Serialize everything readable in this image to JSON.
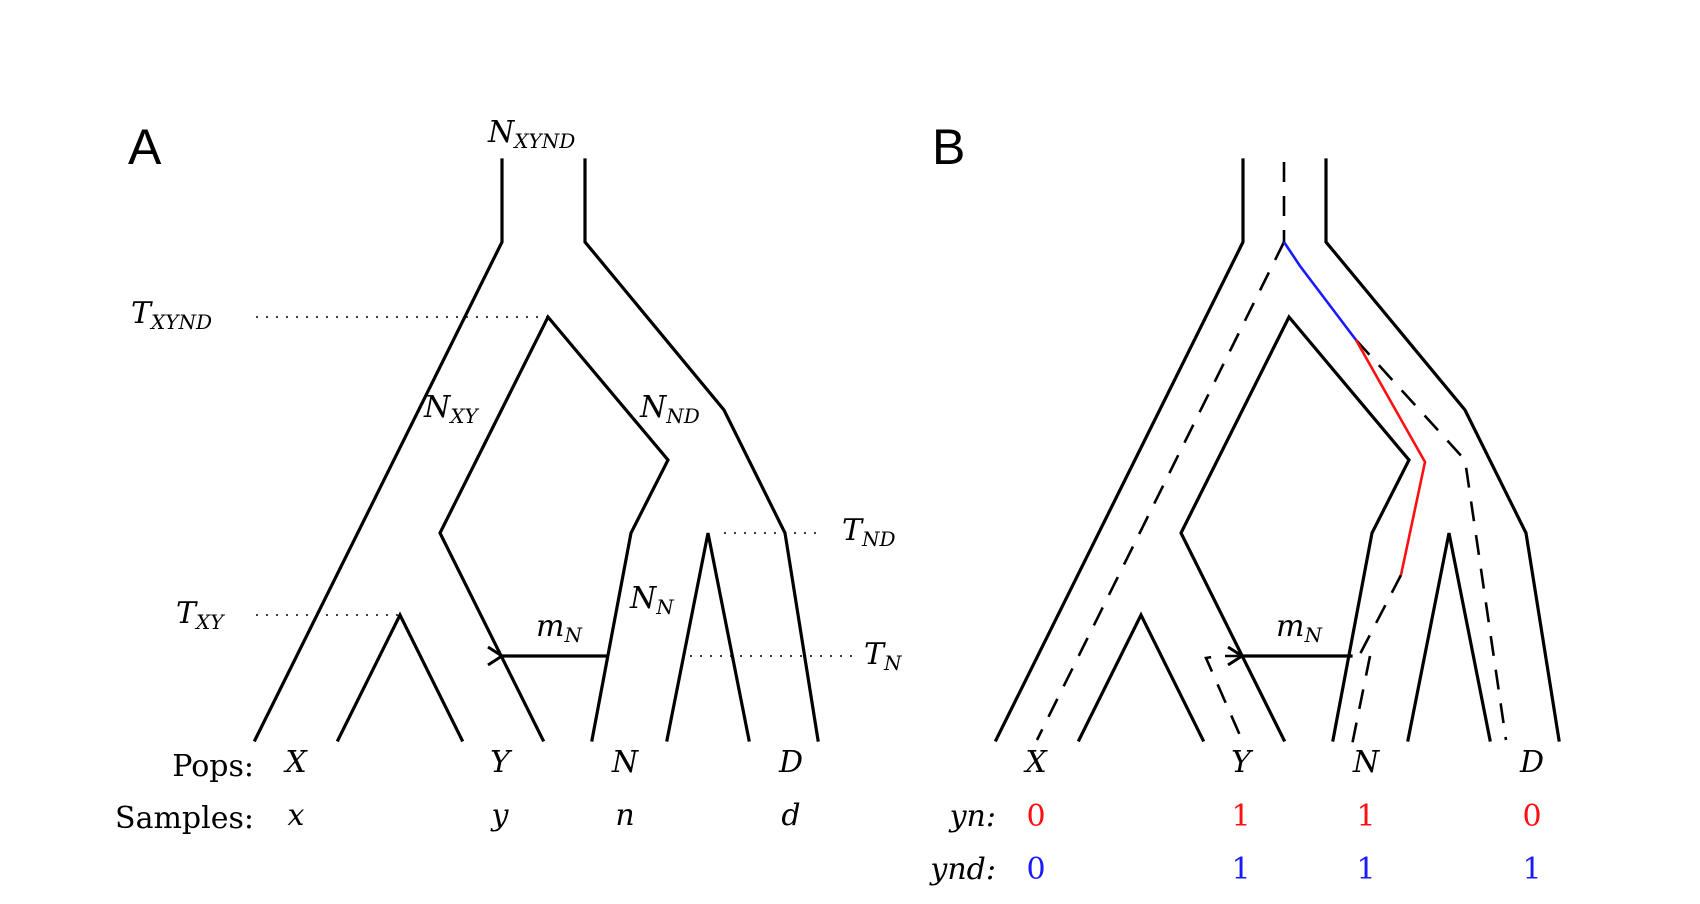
{
  "panels": {
    "a": {
      "letter": "A",
      "top_size_label": {
        "main": "N",
        "sub": "XYND"
      },
      "split_times": [
        {
          "main": "T",
          "sub": "XYND"
        },
        {
          "main": "T",
          "sub": "XY"
        },
        {
          "main": "T",
          "sub": "ND"
        },
        {
          "main": "T",
          "sub": "N"
        }
      ],
      "branch_sizes": [
        {
          "main": "N",
          "sub": "XY"
        },
        {
          "main": "N",
          "sub": "ND"
        },
        {
          "main": "N",
          "sub": "N"
        }
      ],
      "migration": {
        "main": "m",
        "sub": "N"
      },
      "row_labels": {
        "pops": "Pops:",
        "samples": "Samples:"
      },
      "pops": [
        "X",
        "Y",
        "N",
        "D"
      ],
      "samples": [
        "x",
        "y",
        "n",
        "d"
      ]
    },
    "b": {
      "letter": "B",
      "migration": {
        "main": "m",
        "sub": "N"
      },
      "pops": [
        "X",
        "Y",
        "N",
        "D"
      ],
      "rows": [
        {
          "label": "yn:",
          "color": "#ff1010",
          "values": [
            "0",
            "1",
            "1",
            "0"
          ]
        },
        {
          "label": "ynd:",
          "color": "#1a1aff",
          "values": [
            "0",
            "1",
            "1",
            "1"
          ]
        }
      ]
    }
  }
}
